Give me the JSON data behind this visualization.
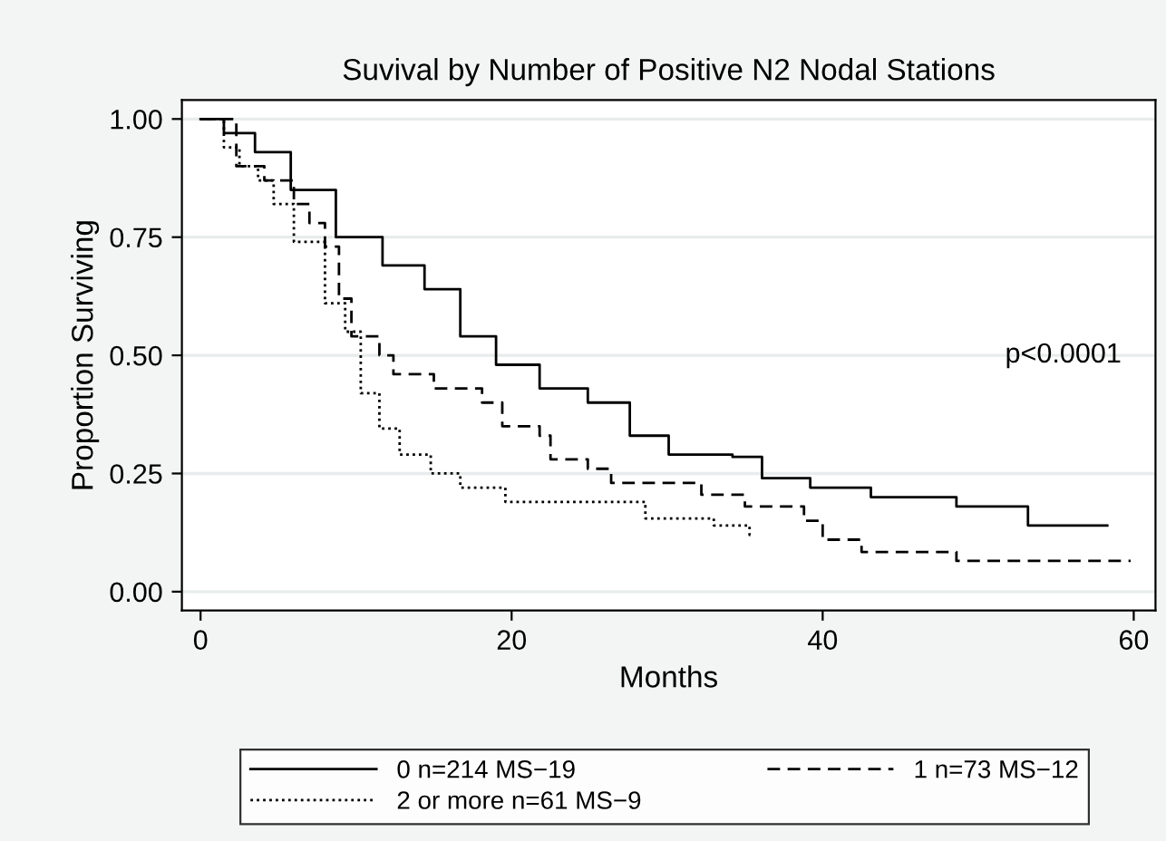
{
  "chart_data": {
    "type": "step",
    "title": "Suvival by Number of Positive N2 Nodal Stations",
    "xlabel": "Months",
    "ylabel": "Proportion Surviving",
    "xlim": [
      -1.2,
      61.4
    ],
    "xticks": [
      0,
      20,
      40,
      60
    ],
    "ylim": [
      -0.04,
      1.04
    ],
    "yticks": [
      {
        "value": 0,
        "label": "0.00"
      },
      {
        "value": 0.25,
        "label": "0.25"
      },
      {
        "value": 0.5,
        "label": "0.50"
      },
      {
        "value": 0.75,
        "label": "0.75"
      },
      {
        "value": 1,
        "label": "1.00"
      }
    ],
    "grid": "y",
    "legend": "bottom",
    "marker": "none",
    "annotations": [
      "p<0.0001"
    ],
    "series": [
      {
        "name": "0 n=214 MS−19",
        "color": "#000000",
        "line_style": "solid",
        "x": [
          0,
          1.5,
          3.5,
          5.8,
          8.7,
          11.7,
          14.4,
          16.7,
          19.0,
          21.8,
          24.9,
          27.6,
          30.1,
          34.2,
          36.1,
          39.2,
          43.1,
          48.6,
          53.2,
          58.3
        ],
        "values": [
          1.0,
          0.97,
          0.93,
          0.85,
          0.75,
          0.69,
          0.64,
          0.54,
          0.48,
          0.43,
          0.4,
          0.33,
          0.29,
          0.285,
          0.24,
          0.22,
          0.2,
          0.18,
          0.14,
          0.14
        ]
      },
      {
        "name": "1 n=73 MS−12",
        "color": "#000000",
        "line_style": "dashed",
        "x": [
          0,
          2.3,
          4.1,
          6.0,
          7.0,
          8.0,
          8.9,
          9.7,
          11.5,
          12.4,
          15.0,
          18.1,
          19.4,
          21.8,
          22.5,
          24.9,
          26.4,
          29.9,
          32.2,
          35.0,
          38.8,
          40.0,
          42.5,
          48.6,
          59.8
        ],
        "values": [
          1.0,
          0.9,
          0.87,
          0.82,
          0.78,
          0.73,
          0.62,
          0.54,
          0.5,
          0.46,
          0.43,
          0.4,
          0.35,
          0.33,
          0.28,
          0.26,
          0.23,
          0.23,
          0.205,
          0.18,
          0.15,
          0.11,
          0.084,
          0.065,
          0.065
        ]
      },
      {
        "name": "2 or more n=61 MS−9",
        "color": "#000000",
        "line_style": "dotted",
        "x": [
          0,
          1.5,
          2.5,
          3.7,
          4.7,
          6.0,
          8.0,
          9.3,
          10.3,
          11.5,
          12.8,
          14.8,
          16.7,
          19.6,
          28.6,
          33.0,
          35.3,
          35.5
        ],
        "values": [
          1.0,
          0.94,
          0.9,
          0.87,
          0.82,
          0.74,
          0.61,
          0.55,
          0.42,
          0.345,
          0.29,
          0.25,
          0.22,
          0.19,
          0.155,
          0.14,
          0.12,
          0.12
        ]
      }
    ]
  }
}
